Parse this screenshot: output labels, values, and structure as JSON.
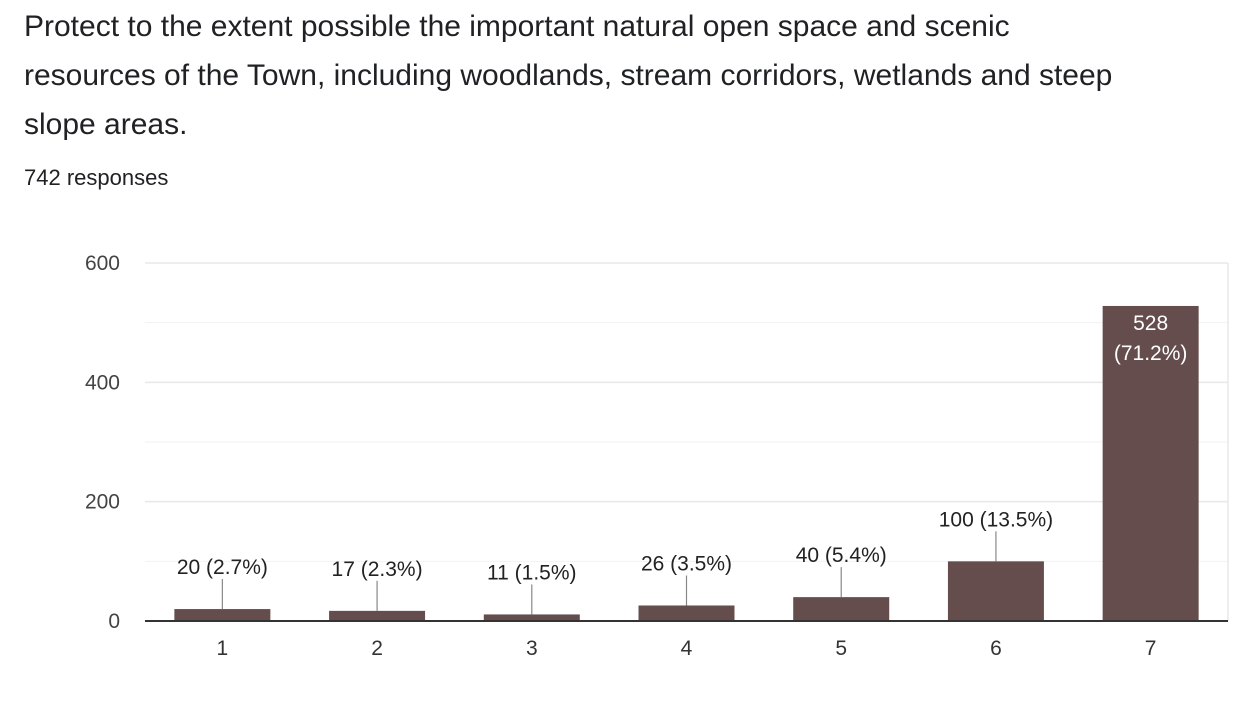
{
  "question": {
    "title": "Protect to the extent possible the important natural open space and scenic resources of the Town, including woodlands, stream corridors, wetlands and steep slope areas.",
    "response_count": "742 responses"
  },
  "colors": {
    "bar": "#654d4d",
    "axis_line": "#333333",
    "gridline": "#e8e8e8",
    "minor_gridline": "#f2f2f2",
    "label_text": "#222222",
    "leader_line": "#888888",
    "inside_label_text": "#ffffff"
  },
  "chart_data": {
    "type": "bar",
    "categories": [
      "1",
      "2",
      "3",
      "4",
      "5",
      "6",
      "7"
    ],
    "values": [
      20,
      17,
      11,
      26,
      40,
      100,
      528
    ],
    "data_labels": [
      "20 (2.7%)",
      "17 (2.3%)",
      "11 (1.5%)",
      "26 (3.5%)",
      "40 (5.4%)",
      "100 (13.5%)",
      "528 (71.2%)"
    ],
    "yticks": [
      0,
      200,
      400,
      600
    ],
    "ylim": [
      0,
      600
    ],
    "grid": true,
    "title": "",
    "xlabel": "",
    "ylabel": ""
  }
}
